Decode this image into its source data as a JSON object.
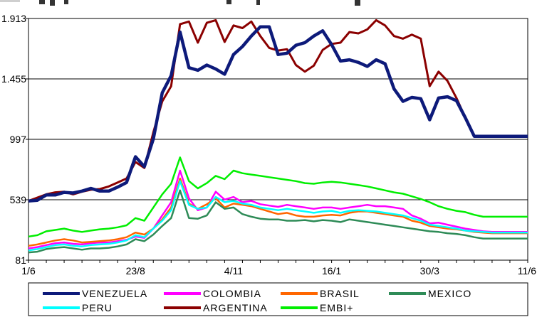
{
  "chart_data": {
    "type": "line",
    "title": "",
    "xlabel": "",
    "ylabel": "",
    "ylim": [
      81,
      1913
    ],
    "yticks": [
      "81",
      "539",
      "997",
      "1.455",
      "1.913"
    ],
    "ytick_values": [
      81,
      539,
      997,
      1455,
      1913
    ],
    "xticks": [
      {
        "label": "1/6",
        "index": 0
      },
      {
        "label": "23/8",
        "index": 12
      },
      {
        "label": "4/11",
        "index": 23
      },
      {
        "label": "16/1",
        "index": 34
      },
      {
        "label": "30/3",
        "index": 45
      },
      {
        "label": "11/6",
        "index": 56
      }
    ],
    "grid": "horizontal",
    "legend_position": "bottom",
    "series": [
      {
        "name": "VENEZUELA",
        "color": "#0d1a7a",
        "width": 4.5,
        "values": [
          530,
          535,
          575,
          575,
          595,
          590,
          605,
          625,
          605,
          605,
          635,
          670,
          865,
          790,
          1000,
          1350,
          1480,
          1810,
          1540,
          1520,
          1560,
          1530,
          1490,
          1640,
          1700,
          1780,
          1850,
          1850,
          1640,
          1650,
          1710,
          1730,
          1780,
          1820,
          1715,
          1590,
          1600,
          1580,
          1550,
          1600,
          1570,
          1380,
          1285,
          1315,
          1305,
          1145,
          1310,
          1320,
          1290,
          1160,
          1020,
          1020,
          1020,
          1020,
          1020,
          1020,
          1020
        ]
      },
      {
        "name": "ARGENTINA",
        "color": "#8b0000",
        "width": 3,
        "values": [
          530,
          555,
          580,
          595,
          600,
          580,
          600,
          615,
          620,
          640,
          670,
          700,
          825,
          780,
          1050,
          1285,
          1400,
          1870,
          1890,
          1730,
          1880,
          1900,
          1735,
          1860,
          1840,
          1890,
          1780,
          1690,
          1670,
          1680,
          1560,
          1510,
          1555,
          1675,
          1720,
          1730,
          1810,
          1800,
          1830,
          1900,
          1860,
          1780,
          1760,
          1790,
          1760,
          1400,
          1510,
          1440,
          1310,
          1160,
          1020,
          1020,
          1020,
          1020,
          1020,
          1020,
          1020
        ]
      },
      {
        "name": "COLOMBIA",
        "color": "#ff00ff",
        "width": 2.5,
        "values": [
          170,
          180,
          195,
          210,
          215,
          205,
          200,
          210,
          215,
          215,
          225,
          235,
          260,
          250,
          320,
          420,
          520,
          760,
          550,
          460,
          480,
          600,
          540,
          560,
          520,
          530,
          505,
          495,
          485,
          500,
          490,
          480,
          470,
          480,
          480,
          470,
          480,
          490,
          500,
          490,
          490,
          480,
          470,
          420,
          395,
          360,
          365,
          350,
          335,
          320,
          310,
          300,
          295,
          295,
          295,
          295,
          295
        ]
      },
      {
        "name": "BRASIL",
        "color": "#ff6600",
        "width": 2.5,
        "values": [
          190,
          200,
          215,
          230,
          240,
          230,
          215,
          220,
          225,
          230,
          240,
          255,
          290,
          275,
          320,
          390,
          480,
          700,
          510,
          470,
          505,
          550,
          480,
          510,
          500,
          490,
          470,
          450,
          430,
          440,
          420,
          410,
          410,
          420,
          425,
          420,
          440,
          450,
          450,
          440,
          430,
          420,
          410,
          380,
          365,
          340,
          330,
          320,
          315,
          305,
          295,
          290,
          285,
          285,
          285,
          285,
          285
        ]
      },
      {
        "name": "MEXICO",
        "color": "#2e8b57",
        "width": 2.5,
        "values": [
          140,
          145,
          165,
          175,
          180,
          170,
          160,
          170,
          170,
          175,
          185,
          200,
          240,
          225,
          275,
          340,
          400,
          610,
          400,
          395,
          420,
          520,
          470,
          480,
          430,
          410,
          395,
          390,
          390,
          380,
          380,
          385,
          375,
          385,
          380,
          370,
          390,
          380,
          370,
          360,
          350,
          340,
          330,
          320,
          310,
          300,
          295,
          285,
          280,
          270,
          255,
          245,
          245,
          245,
          245,
          245,
          245
        ]
      },
      {
        "name": "PERU",
        "color": "#00ffff",
        "width": 2.5,
        "values": [
          155,
          165,
          180,
          195,
          200,
          190,
          185,
          195,
          200,
          205,
          215,
          230,
          270,
          255,
          320,
          380,
          460,
          680,
          500,
          470,
          480,
          560,
          520,
          530,
          510,
          500,
          480,
          470,
          460,
          470,
          460,
          450,
          440,
          450,
          455,
          440,
          455,
          460,
          455,
          450,
          440,
          430,
          420,
          400,
          380,
          350,
          340,
          330,
          320,
          305,
          300,
          295,
          290,
          290,
          290,
          290,
          290
        ]
      },
      {
        "name": "EMBI+",
        "color": "#00ee00",
        "width": 2.5,
        "values": [
          260,
          270,
          300,
          310,
          320,
          305,
          295,
          305,
          315,
          320,
          330,
          345,
          400,
          380,
          480,
          580,
          660,
          860,
          680,
          625,
          665,
          720,
          695,
          760,
          740,
          730,
          720,
          710,
          700,
          690,
          680,
          665,
          660,
          670,
          675,
          670,
          660,
          650,
          640,
          625,
          610,
          595,
          585,
          565,
          545,
          520,
          490,
          470,
          455,
          445,
          425,
          410,
          410,
          410,
          410,
          410,
          410
        ]
      }
    ]
  },
  "legend": {
    "items": [
      {
        "label": "VENEZUELA",
        "color": "#0d1a7a"
      },
      {
        "label": "COLOMBIA",
        "color": "#ff00ff"
      },
      {
        "label": "BRASIL",
        "color": "#ff6600"
      },
      {
        "label": "MEXICO",
        "color": "#2e8b57"
      },
      {
        "label": "PERU",
        "color": "#00ffff"
      },
      {
        "label": "ARGENTINA",
        "color": "#8b0000"
      },
      {
        "label": "EMBI+",
        "color": "#00ee00"
      }
    ]
  }
}
